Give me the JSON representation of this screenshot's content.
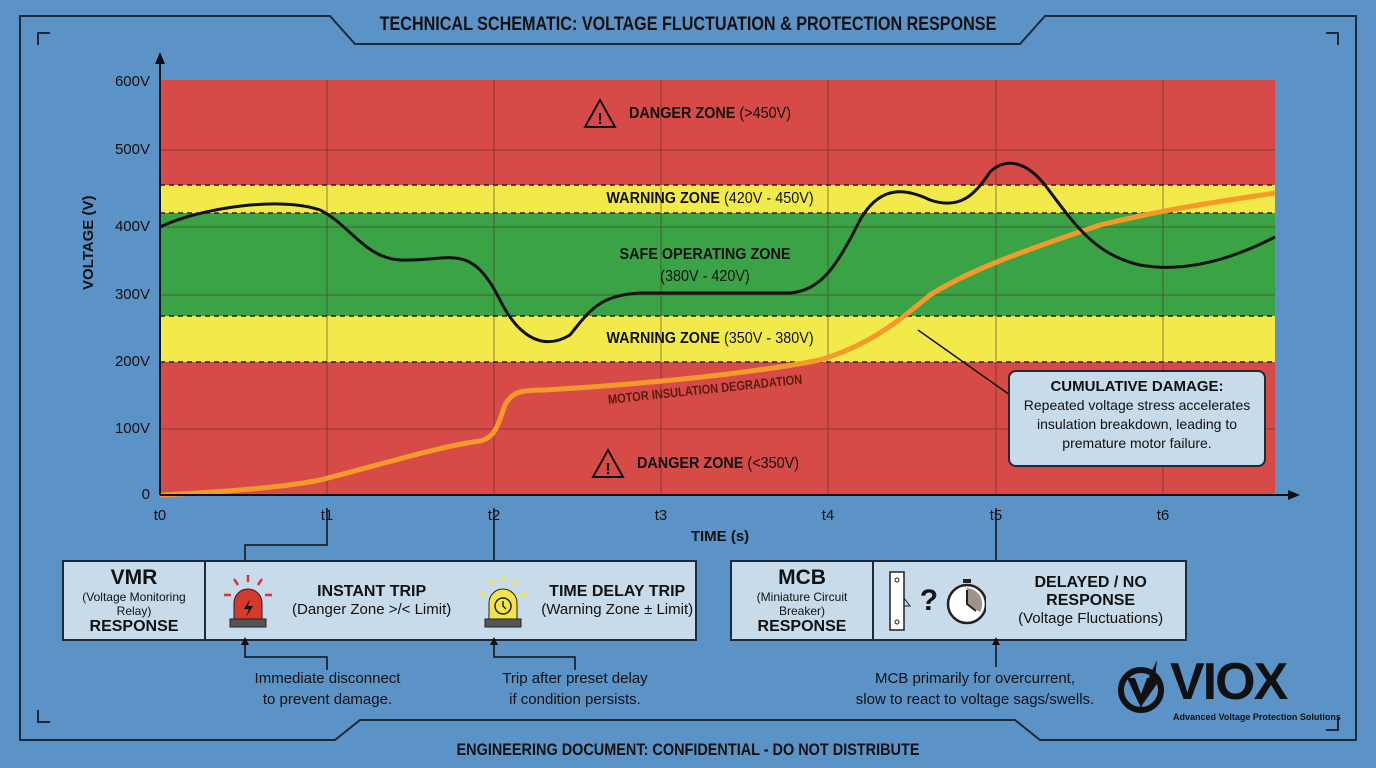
{
  "title": "TECHNICAL SCHEMATIC: VOLTAGE FLUCTUATION & PROTECTION RESPONSE",
  "footer": "ENGINEERING DOCUMENT: CONFIDENTIAL - DO NOT DISTRIBUTE",
  "axes": {
    "ylabel": "VOLTAGE (V)",
    "xlabel": "TIME (s)",
    "yticks": [
      "600V",
      "500V",
      "400V",
      "300V",
      "200V",
      "100V",
      "0"
    ],
    "xticks": [
      "t0",
      "t1",
      "t2",
      "t3",
      "t4",
      "t5",
      "t6"
    ]
  },
  "zones": {
    "danger_high": {
      "label": "DANGER ZONE",
      "range": "(>450V)",
      "color": "#d64a47"
    },
    "warning_high": {
      "label": "WARNING ZONE",
      "range": "(420V - 450V)",
      "color": "#f2ea4a"
    },
    "safe": {
      "label": "SAFE OPERATING ZONE",
      "range": "(380V - 420V)",
      "color": "#3aa346"
    },
    "warning_low": {
      "label": "WARNING ZONE",
      "range": "(350V - 380V)",
      "color": "#f2ea4a"
    },
    "danger_low": {
      "label": "DANGER ZONE",
      "range": "(<350V)",
      "color": "#d64a47"
    }
  },
  "degradation_label": "MOTOR INSULATION DEGRADATION",
  "callout": {
    "title": "CUMULATIVE DAMAGE:",
    "text": "Repeated voltage stress accelerates insulation breakdown, leading to premature motor failure."
  },
  "vmr": {
    "title": "VMR",
    "subtitle": "(Voltage Monitoring Relay)",
    "response": "RESPONSE",
    "instant": {
      "title": "INSTANT TRIP",
      "desc": "(Danger Zone >/< Limit)",
      "note1": "Immediate disconnect",
      "note2": "to prevent damage."
    },
    "delay": {
      "title": "TIME DELAY TRIP",
      "desc": "(Warning Zone ± Limit)",
      "note1": "Trip after preset delay",
      "note2": "if condition persists."
    }
  },
  "mcb": {
    "title": "MCB",
    "subtitle": "(Miniature Circuit Breaker)",
    "response": "RESPONSE",
    "result": {
      "title": "DELAYED / NO RESPONSE",
      "desc": "(Voltage Fluctuations)",
      "note1": "MCB primarily for overcurrent,",
      "note2": "slow to react to voltage sags/swells."
    }
  },
  "logo": {
    "name": "VIOX",
    "tagline": "Advanced Voltage Protection Solutions"
  }
}
